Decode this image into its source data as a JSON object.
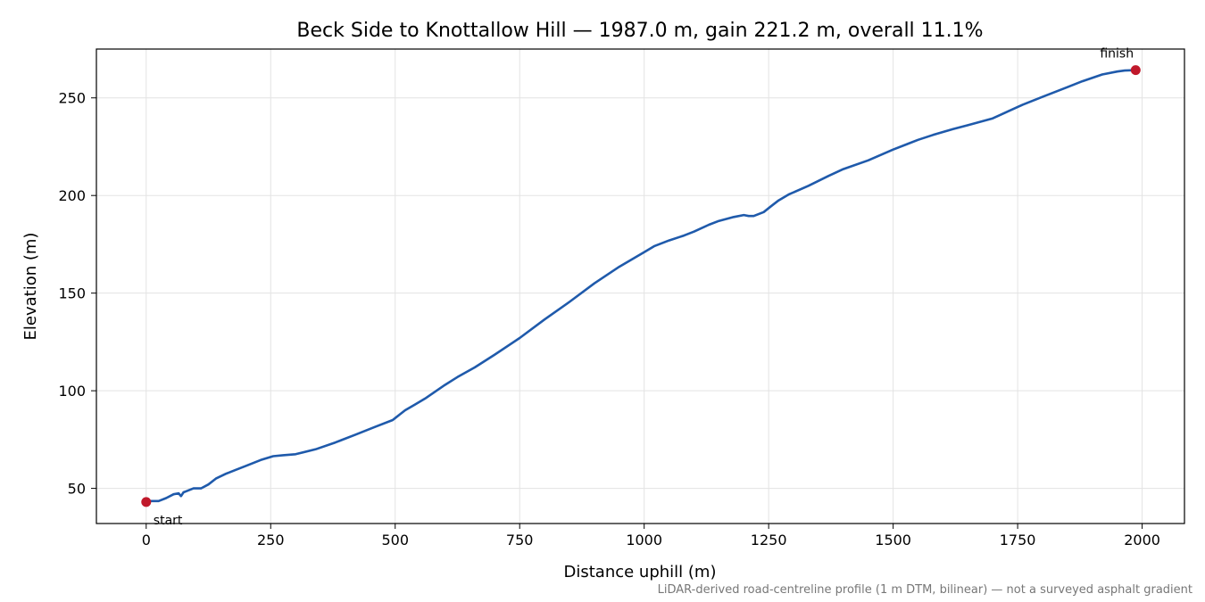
{
  "chart_data": {
    "type": "line",
    "title": "Beck Side to Knottallow Hill — 1987.0 m, gain 221.2 m, overall 11.1%",
    "xlabel": "Distance uphill (m)",
    "ylabel": "Elevation (m)",
    "xlim": [
      -100,
      2085
    ],
    "ylim": [
      32,
      275
    ],
    "x_ticks": [
      0,
      250,
      500,
      750,
      1000,
      1250,
      1500,
      1750,
      2000
    ],
    "y_ticks": [
      50,
      100,
      150,
      200,
      250
    ],
    "grid": true,
    "caption": "LiDAR-derived road-centreline profile (1 m DTM, bilinear) — not a surveyed asphalt gradient",
    "colors": {
      "line": "#1f5aab",
      "marker": "#c0192b",
      "grid": "#e3e3e3"
    },
    "series": [
      {
        "x": [
          0,
          10,
          25,
          40,
          55,
          65,
          70,
          75,
          80,
          95,
          110,
          125,
          140,
          160,
          180,
          200,
          230,
          255,
          275,
          300,
          340,
          380,
          420,
          460,
          495,
          500,
          510,
          520,
          530,
          540,
          560,
          600,
          625,
          660,
          700,
          750,
          800,
          850,
          900,
          950,
          1000,
          1020,
          1050,
          1080,
          1100,
          1130,
          1150,
          1180,
          1200,
          1210,
          1220,
          1240,
          1255,
          1270,
          1290,
          1330,
          1370,
          1400,
          1450,
          1500,
          1550,
          1580,
          1620,
          1650,
          1700,
          1730,
          1760,
          1800,
          1850,
          1880,
          1920,
          1950,
          1965,
          1987
        ],
        "y": [
          43,
          43.5,
          43.5,
          45,
          47,
          47.5,
          46,
          48,
          48.5,
          50,
          50,
          52,
          55,
          57.5,
          59.5,
          61.5,
          64.5,
          66.5,
          67,
          67.5,
          70,
          73.5,
          77.5,
          81.5,
          85,
          86,
          88,
          90,
          91.5,
          93,
          96,
          103,
          107,
          112,
          118.5,
          127,
          136.5,
          145.5,
          155,
          163.5,
          171,
          174,
          177,
          179.5,
          181.5,
          185,
          187,
          189,
          190,
          189.5,
          189.5,
          191.5,
          194.5,
          197.5,
          200.5,
          205,
          210,
          213.5,
          218,
          223.5,
          228.5,
          231,
          234,
          236,
          239.5,
          243,
          246.5,
          250.5,
          255.5,
          258.5,
          262,
          263.5,
          264,
          264.2
        ]
      }
    ],
    "annotations": [
      {
        "text": "start",
        "x": 0,
        "y": 43
      },
      {
        "text": "finish",
        "x": 1987,
        "y": 264.2
      }
    ]
  }
}
